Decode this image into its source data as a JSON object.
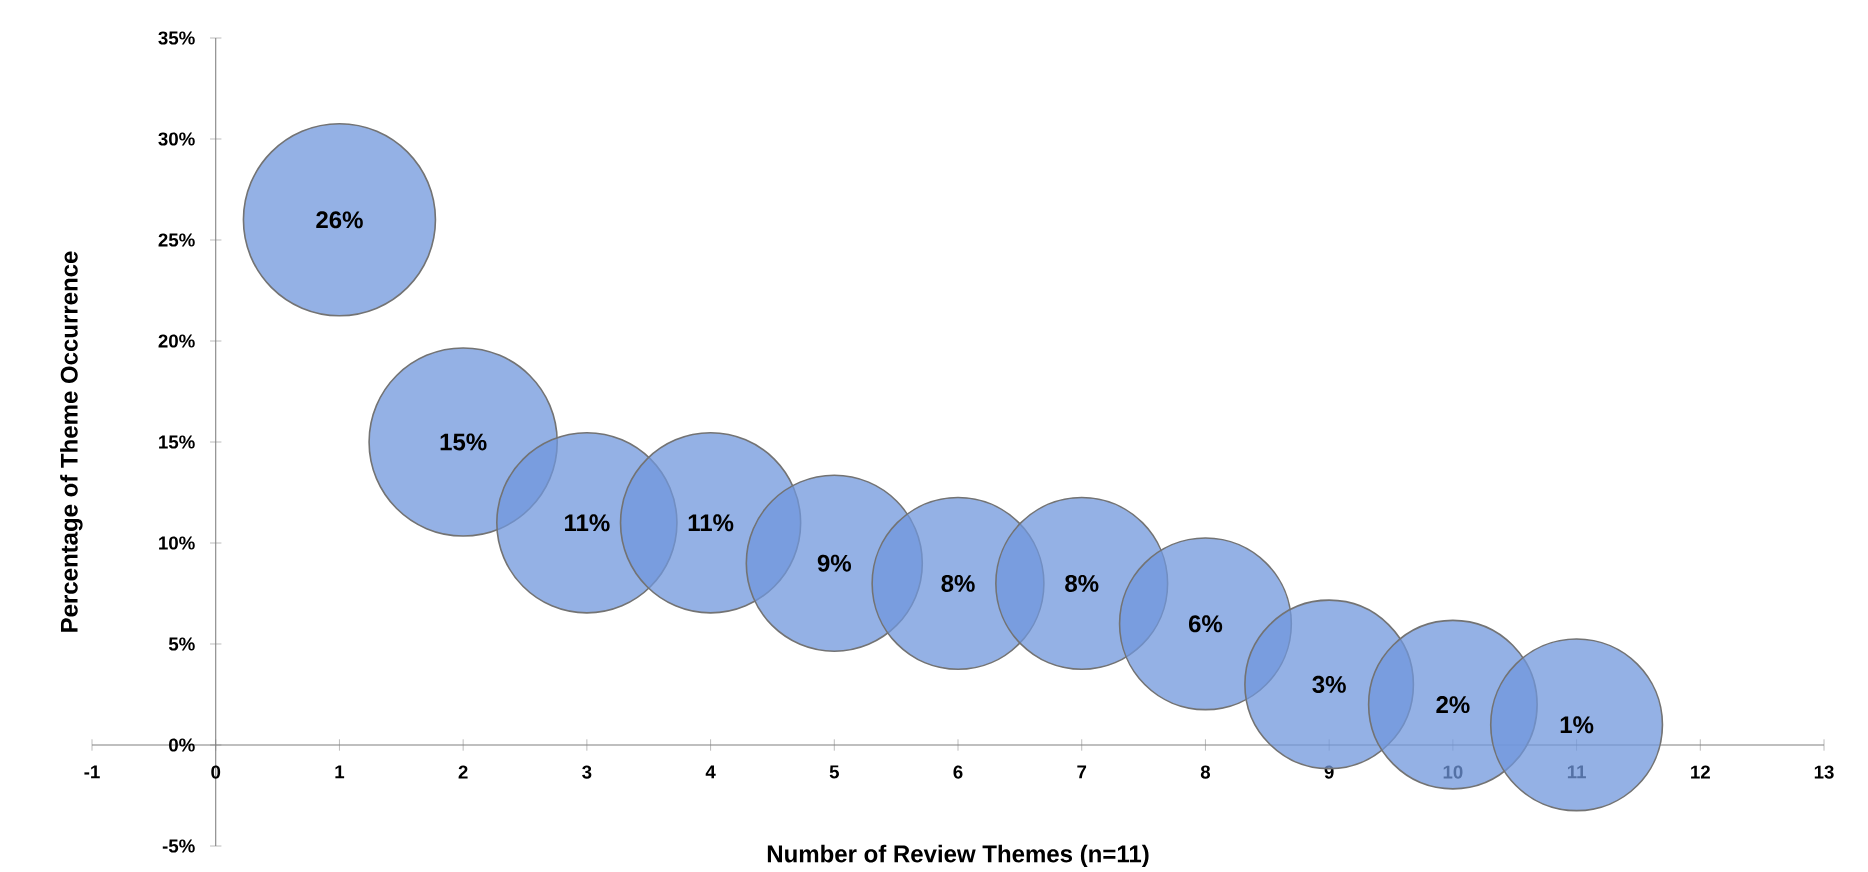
{
  "chart_data": {
    "type": "bubble",
    "xlabel": "Number of Review Themes (n=11)",
    "ylabel": "Percentage of Theme Occurrence",
    "x": [
      1,
      2,
      3,
      4,
      5,
      6,
      7,
      8,
      9,
      10,
      11
    ],
    "values": [
      26,
      15,
      11,
      11,
      9,
      8,
      8,
      6,
      3,
      2,
      1
    ],
    "sizes": [
      1,
      0.96,
      0.88,
      0.88,
      0.84,
      0.8,
      0.8,
      0.8,
      0.77,
      0.77,
      0.8
    ],
    "value_labels": [
      "26%",
      "15%",
      "11%",
      "11%",
      "9%",
      "8%",
      "8%",
      "6%",
      "3%",
      "2%",
      "1%"
    ],
    "color": "#7097dc",
    "xlim": [
      -1,
      13
    ],
    "xticks": [
      -1,
      0,
      1,
      2,
      3,
      4,
      5,
      6,
      7,
      8,
      9,
      10,
      11,
      12,
      13
    ],
    "ylim": [
      -5,
      35
    ],
    "yticks": [
      {
        "value": -5,
        "label": "-5%"
      },
      {
        "value": 0,
        "label": "0%"
      },
      {
        "value": 5,
        "label": "5%"
      },
      {
        "value": 10,
        "label": "10%"
      },
      {
        "value": 15,
        "label": "15%"
      },
      {
        "value": 20,
        "label": "20%"
      },
      {
        "value": 25,
        "label": "25%"
      },
      {
        "value": 30,
        "label": "30%"
      },
      {
        "value": 35,
        "label": "35%"
      }
    ],
    "grid": false
  }
}
